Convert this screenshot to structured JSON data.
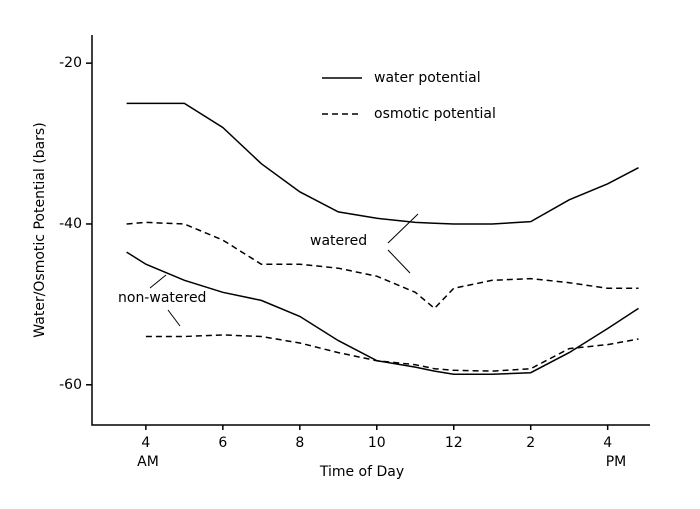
{
  "chart_data": {
    "type": "line",
    "xlabel": "Time of Day",
    "ylabel": "Water/Osmotic Potential (bars)",
    "x": [
      3.5,
      4,
      5,
      6,
      7,
      8,
      9,
      10,
      11,
      11.5,
      12,
      13,
      14,
      15,
      16,
      16.8
    ],
    "xlim": [
      2.6,
      17.1
    ],
    "xticks": [
      4,
      6,
      8,
      10,
      12,
      {
        "value": 14,
        "label": "2"
      },
      {
        "value": 16,
        "label": "4"
      }
    ],
    "ylim": [
      -65,
      -16.5
    ],
    "yticks": [
      -20,
      -40,
      -60
    ],
    "legend": [
      {
        "label": "water potential",
        "dashed": false
      },
      {
        "label": "osmotic potential",
        "dashed": true
      }
    ],
    "series": [
      {
        "color": "#000000",
        "dashed": false,
        "values": [
          -25,
          -25,
          -25,
          -28,
          -32.5,
          -36,
          -38.5,
          -39.3,
          -39.8,
          -39.9,
          -40,
          -40,
          -39.7,
          -37,
          -35,
          -33
        ]
      },
      {
        "color": "#000000",
        "dashed": true,
        "values": [
          -40,
          -39.8,
          -40,
          -42,
          -45,
          -45,
          -45.5,
          -46.5,
          -48.5,
          -50.5,
          -48,
          -47,
          -46.8,
          -47.3,
          -48,
          -48
        ]
      },
      {
        "color": "#000000",
        "dashed": false,
        "values": [
          -43.5,
          -45,
          -47,
          -48.5,
          -49.5,
          -51.5,
          -54.5,
          -57,
          -57.8,
          -58.3,
          -58.7,
          -58.7,
          -58.5,
          -56,
          -53,
          -50.5
        ]
      },
      {
        "color": "#000000",
        "dashed": true,
        "values": [
          null,
          -54,
          -54,
          -53.8,
          -54,
          -54.8,
          -56,
          -57,
          -57.5,
          -58,
          -58.2,
          -58.3,
          -58,
          -55.5,
          -55,
          -54.3
        ]
      }
    ],
    "annotations": [
      "watered",
      "non-watered",
      "AM",
      "PM"
    ]
  }
}
